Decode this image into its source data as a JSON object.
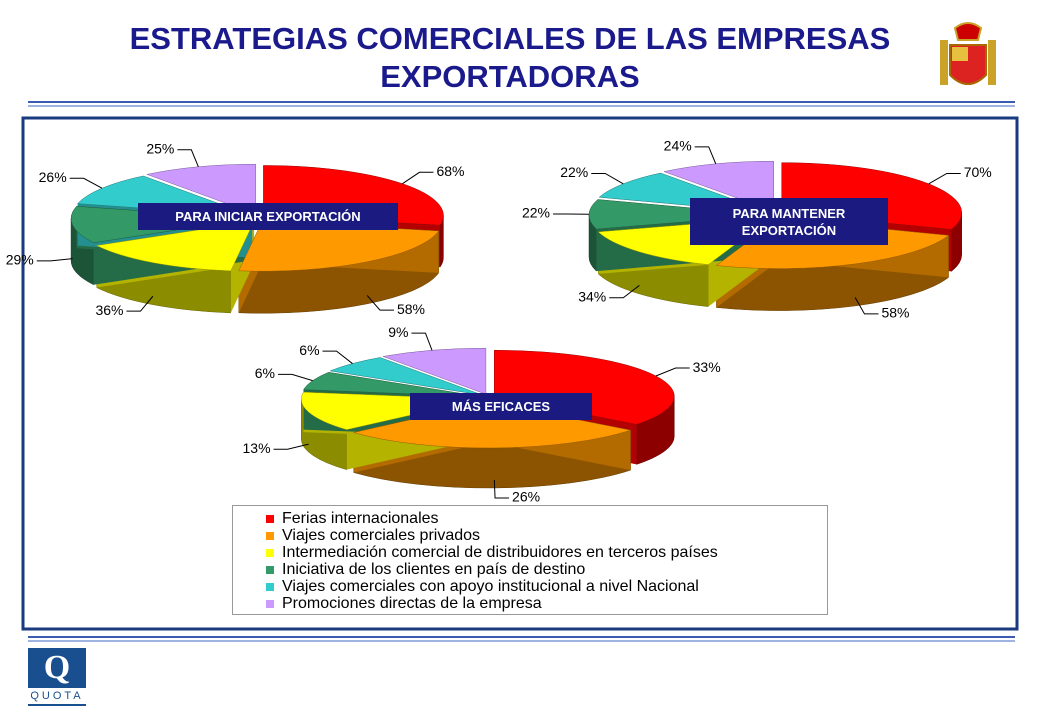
{
  "title": "ESTRATEGIAS COMERCIALES DE LAS EMPRESAS EXPORTADORAS",
  "legend": [
    {
      "name": "Ferias internacionales",
      "color": "#ff0000"
    },
    {
      "name": "Viajes comerciales privados",
      "color": "#ff9900"
    },
    {
      "name": "Intermediación comercial de distribuidores en terceros países",
      "color": "#ffff00"
    },
    {
      "name": "Iniciativa de los clientes en país de destino",
      "color": "#339966"
    },
    {
      "name": "Viajes comerciales con apoyo institucional a nivel Nacional",
      "color": "#33cccc"
    },
    {
      "name": "Promociones directas de la empresa",
      "color": "#cc99ff"
    }
  ],
  "chart_data": [
    {
      "type": "pie",
      "title": "PARA INICIAR EXPORTACIÓN",
      "values": [
        68,
        58,
        36,
        29,
        26,
        25
      ],
      "value_labels": [
        "68%",
        "58%",
        "36%",
        "29%",
        "26%",
        "25%"
      ]
    },
    {
      "type": "pie",
      "title": "PARA MANTENER EXPORTACIÓN",
      "values": [
        70,
        58,
        34,
        22,
        22,
        24
      ],
      "value_labels": [
        "70%",
        "58%",
        "34%",
        "22%",
        "22%",
        "24%"
      ]
    },
    {
      "type": "pie",
      "title": "MÁS EFICACES",
      "values": [
        33,
        26,
        13,
        6,
        6,
        9
      ],
      "value_labels": [
        "33%",
        "26%",
        "13%",
        "6%",
        "6%",
        "9%"
      ]
    }
  ],
  "logo": {
    "letter": "Q",
    "name": "QUOTA"
  }
}
